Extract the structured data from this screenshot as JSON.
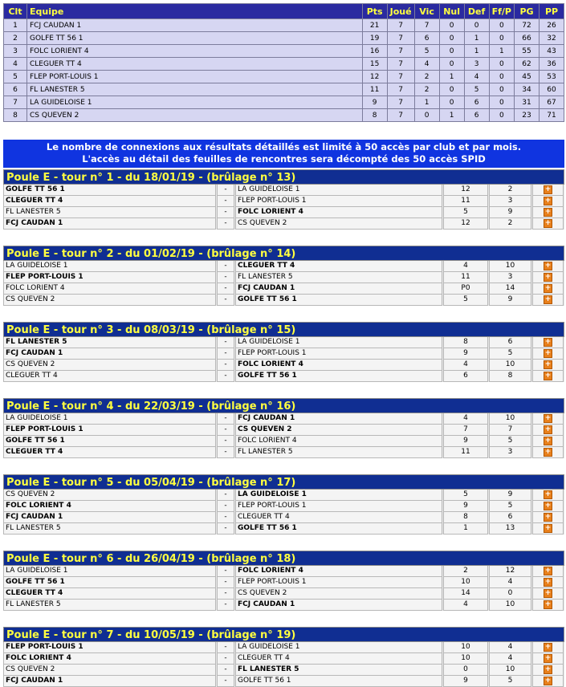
{
  "standings": {
    "headers": [
      "Clt",
      "Equipe",
      "Pts",
      "Joué",
      "Vic",
      "Nul",
      "Def",
      "Ff/P",
      "PG",
      "PP"
    ],
    "rows": [
      [
        "1",
        "FCJ CAUDAN 1",
        "21",
        "7",
        "7",
        "0",
        "0",
        "0",
        "72",
        "26"
      ],
      [
        "2",
        "GOLFE TT 56 1",
        "19",
        "7",
        "6",
        "0",
        "1",
        "0",
        "66",
        "32"
      ],
      [
        "3",
        "FOLC LORIENT 4",
        "16",
        "7",
        "5",
        "0",
        "1",
        "1",
        "55",
        "43"
      ],
      [
        "4",
        "CLEGUER TT 4",
        "15",
        "7",
        "4",
        "0",
        "3",
        "0",
        "62",
        "36"
      ],
      [
        "5",
        "FLEP PORT-LOUIS 1",
        "12",
        "7",
        "2",
        "1",
        "4",
        "0",
        "45",
        "53"
      ],
      [
        "6",
        "FL LANESTER 5",
        "11",
        "7",
        "2",
        "0",
        "5",
        "0",
        "34",
        "60"
      ],
      [
        "7",
        "LA GUIDELOISE 1",
        "9",
        "7",
        "1",
        "0",
        "6",
        "0",
        "31",
        "67"
      ],
      [
        "8",
        "CS QUEVEN 2",
        "8",
        "7",
        "0",
        "1",
        "6",
        "0",
        "23",
        "71"
      ]
    ]
  },
  "notice": {
    "line1": "Le nombre de connexions aux résultats détaillés est limité à 50 accès par club et par mois.",
    "line2": "L'accès au détail des feuilles de rencontres sera décompté des 50 accès SPID"
  },
  "separator": "-",
  "detail_icon": "+",
  "rounds": [
    {
      "title": "Poule E - tour n° 1 - du 18/01/19 - (brûlage n° 13)",
      "matches": [
        {
          "home": "GOLFE TT 56 1",
          "away": "LA GUIDELOISE 1",
          "s1": "12",
          "s2": "2",
          "winner": "home"
        },
        {
          "home": "CLEGUER TT 4",
          "away": "FLEP PORT-LOUIS 1",
          "s1": "11",
          "s2": "3",
          "winner": "home"
        },
        {
          "home": "FL LANESTER 5",
          "away": "FOLC LORIENT 4",
          "s1": "5",
          "s2": "9",
          "winner": "away"
        },
        {
          "home": "FCJ CAUDAN 1",
          "away": "CS QUEVEN 2",
          "s1": "12",
          "s2": "2",
          "winner": "home"
        }
      ]
    },
    {
      "title": "Poule E - tour n° 2 - du 01/02/19 - (brûlage n° 14)",
      "matches": [
        {
          "home": "LA GUIDELOISE 1",
          "away": "CLEGUER TT 4",
          "s1": "4",
          "s2": "10",
          "winner": "away"
        },
        {
          "home": "FLEP PORT-LOUIS 1",
          "away": "FL LANESTER 5",
          "s1": "11",
          "s2": "3",
          "winner": "home"
        },
        {
          "home": "FOLC LORIENT 4",
          "away": "FCJ CAUDAN 1",
          "s1": "P0",
          "s2": "14",
          "winner": "away"
        },
        {
          "home": "CS QUEVEN 2",
          "away": "GOLFE TT 56 1",
          "s1": "5",
          "s2": "9",
          "winner": "away"
        }
      ]
    },
    {
      "title": "Poule E - tour n° 3 - du 08/03/19 - (brûlage n° 15)",
      "matches": [
        {
          "home": "FL LANESTER 5",
          "away": "LA GUIDELOISE 1",
          "s1": "8",
          "s2": "6",
          "winner": "home"
        },
        {
          "home": "FCJ CAUDAN 1",
          "away": "FLEP PORT-LOUIS 1",
          "s1": "9",
          "s2": "5",
          "winner": "home"
        },
        {
          "home": "CS QUEVEN 2",
          "away": "FOLC LORIENT 4",
          "s1": "4",
          "s2": "10",
          "winner": "away"
        },
        {
          "home": "CLEGUER TT 4",
          "away": "GOLFE TT 56 1",
          "s1": "6",
          "s2": "8",
          "winner": "away"
        }
      ]
    },
    {
      "title": "Poule E - tour n° 4 - du 22/03/19 - (brûlage n° 16)",
      "matches": [
        {
          "home": "LA GUIDELOISE 1",
          "away": "FCJ CAUDAN 1",
          "s1": "4",
          "s2": "10",
          "winner": "away"
        },
        {
          "home": "FLEP PORT-LOUIS 1",
          "away": "CS QUEVEN 2",
          "s1": "7",
          "s2": "7",
          "winner": "both"
        },
        {
          "home": "GOLFE TT 56 1",
          "away": "FOLC LORIENT 4",
          "s1": "9",
          "s2": "5",
          "winner": "home"
        },
        {
          "home": "CLEGUER TT 4",
          "away": "FL LANESTER 5",
          "s1": "11",
          "s2": "3",
          "winner": "home"
        }
      ]
    },
    {
      "title": "Poule E - tour n° 5 - du 05/04/19 - (brûlage n° 17)",
      "matches": [
        {
          "home": "CS QUEVEN 2",
          "away": "LA GUIDELOISE 1",
          "s1": "5",
          "s2": "9",
          "winner": "away"
        },
        {
          "home": "FOLC LORIENT 4",
          "away": "FLEP PORT-LOUIS 1",
          "s1": "9",
          "s2": "5",
          "winner": "home"
        },
        {
          "home": "FCJ CAUDAN 1",
          "away": "CLEGUER TT 4",
          "s1": "8",
          "s2": "6",
          "winner": "home"
        },
        {
          "home": "FL LANESTER 5",
          "away": "GOLFE TT 56 1",
          "s1": "1",
          "s2": "13",
          "winner": "away"
        }
      ]
    },
    {
      "title": "Poule E - tour n° 6 - du 26/04/19 - (brûlage n° 18)",
      "matches": [
        {
          "home": "LA GUIDELOISE 1",
          "away": "FOLC LORIENT 4",
          "s1": "2",
          "s2": "12",
          "winner": "away"
        },
        {
          "home": "GOLFE TT 56 1",
          "away": "FLEP PORT-LOUIS 1",
          "s1": "10",
          "s2": "4",
          "winner": "home"
        },
        {
          "home": "CLEGUER TT 4",
          "away": "CS QUEVEN 2",
          "s1": "14",
          "s2": "0",
          "winner": "home"
        },
        {
          "home": "FL LANESTER 5",
          "away": "FCJ CAUDAN 1",
          "s1": "4",
          "s2": "10",
          "winner": "away"
        }
      ]
    },
    {
      "title": "Poule E - tour n° 7 - du 10/05/19 - (brûlage n° 19)",
      "matches": [
        {
          "home": "FLEP PORT-LOUIS 1",
          "away": "LA GUIDELOISE 1",
          "s1": "10",
          "s2": "4",
          "winner": "home"
        },
        {
          "home": "FOLC LORIENT 4",
          "away": "CLEGUER TT 4",
          "s1": "10",
          "s2": "4",
          "winner": "home"
        },
        {
          "home": "CS QUEVEN 2",
          "away": "FL LANESTER 5",
          "s1": "0",
          "s2": "10",
          "winner": "away"
        },
        {
          "home": "FCJ CAUDAN 1",
          "away": "GOLFE TT 56 1",
          "s1": "9",
          "s2": "5",
          "winner": "home"
        }
      ]
    }
  ]
}
